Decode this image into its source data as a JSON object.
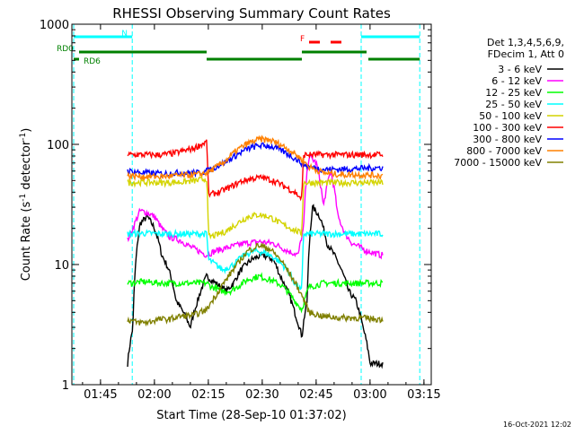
{
  "chart_data": {
    "type": "line",
    "title": "RHESSI Observing Summary Count Rates",
    "xlabel": "Start Time (28-Sep-10 01:37:02)",
    "ylabel": "Count Rate (s",
    "ylabel_sup": "-1",
    "ylabel_mid": " detector",
    "ylabel_end": ")",
    "x_unit": "minutes after 01:37:02 UT",
    "xlim": [
      0,
      100
    ],
    "ylim": [
      1,
      1000
    ],
    "y_scale": "log",
    "grid": false,
    "x_tick_labels": [
      {
        "t": 7.97,
        "label": "01:45"
      },
      {
        "t": 22.97,
        "label": "02:00"
      },
      {
        "t": 37.97,
        "label": "02:15"
      },
      {
        "t": 52.97,
        "label": "02:30"
      },
      {
        "t": 67.97,
        "label": "02:45"
      },
      {
        "t": 82.97,
        "label": "03:00"
      },
      {
        "t": 97.97,
        "label": "03:15"
      }
    ],
    "y_tick_labels": [
      {
        "v": 1,
        "label": "1"
      },
      {
        "v": 10,
        "label": "10"
      },
      {
        "v": 100,
        "label": "100"
      },
      {
        "v": 1000,
        "label": "1000"
      }
    ],
    "legend_title": [
      "Det 1,3,4,5,6,9,",
      "FDecim 1, Att 0"
    ],
    "legend_placement": "right",
    "data_window": [
      15.5,
      86.5
    ],
    "night_markers": [
      0.5,
      16.8,
      80.5,
      96.8
    ],
    "series": [
      {
        "name": "3 - 6 keV",
        "color": "#000000",
        "points": [
          [
            15.5,
            1.5
          ],
          [
            17,
            3
          ],
          [
            19,
            22
          ],
          [
            21,
            25
          ],
          [
            23,
            20
          ],
          [
            25,
            12
          ],
          [
            27,
            9
          ],
          [
            29,
            5
          ],
          [
            31,
            4
          ],
          [
            33,
            3
          ],
          [
            35,
            5
          ],
          [
            37.5,
            8
          ],
          [
            40,
            7
          ],
          [
            43,
            6
          ],
          [
            45,
            7
          ],
          [
            47,
            9
          ],
          [
            50,
            11
          ],
          [
            53,
            12
          ],
          [
            56,
            11
          ],
          [
            58,
            8
          ],
          [
            60,
            6
          ],
          [
            62,
            4
          ],
          [
            64,
            2.5
          ],
          [
            65.5,
            5
          ],
          [
            67,
            30
          ],
          [
            69,
            25
          ],
          [
            71,
            15
          ],
          [
            73,
            12
          ],
          [
            75,
            9
          ],
          [
            77,
            6
          ],
          [
            79,
            5
          ],
          [
            81,
            3
          ],
          [
            83,
            1.5
          ],
          [
            86,
            1.5
          ]
        ]
      },
      {
        "name": "6 - 12 keV",
        "color": "#ff00ff",
        "points": [
          [
            15.5,
            16
          ],
          [
            17,
            20
          ],
          [
            19,
            28
          ],
          [
            21,
            27
          ],
          [
            23,
            25
          ],
          [
            25,
            20
          ],
          [
            27,
            17
          ],
          [
            30,
            16
          ],
          [
            33,
            14
          ],
          [
            37.5,
            12
          ],
          [
            40,
            13
          ],
          [
            44,
            14
          ],
          [
            48,
            15
          ],
          [
            52,
            15.5
          ],
          [
            56,
            15
          ],
          [
            60,
            13
          ],
          [
            63,
            12
          ],
          [
            64.5,
            20
          ],
          [
            66,
            80
          ],
          [
            68,
            70
          ],
          [
            70,
            30
          ],
          [
            72,
            60
          ],
          [
            74,
            25
          ],
          [
            76,
            18
          ],
          [
            78,
            15
          ],
          [
            80,
            14
          ],
          [
            82,
            13
          ],
          [
            86,
            12
          ]
        ]
      },
      {
        "name": "12 - 25 keV",
        "color": "#00ff00",
        "points": [
          [
            15.5,
            7
          ],
          [
            20,
            7.2
          ],
          [
            25,
            7
          ],
          [
            30,
            7
          ],
          [
            35,
            7
          ],
          [
            37.5,
            7
          ],
          [
            39,
            6.5
          ],
          [
            42,
            6
          ],
          [
            44,
            6
          ],
          [
            46,
            6.5
          ],
          [
            49,
            7.5
          ],
          [
            52,
            8
          ],
          [
            55,
            7.5
          ],
          [
            58,
            6.8
          ],
          [
            60,
            6
          ],
          [
            62,
            5
          ],
          [
            64,
            4.2
          ],
          [
            66,
            6.5
          ],
          [
            70,
            7
          ],
          [
            75,
            7
          ],
          [
            80,
            7
          ],
          [
            86,
            7
          ]
        ]
      },
      {
        "name": "25 - 50 keV",
        "color": "#00ffff",
        "points": [
          [
            15.5,
            18
          ],
          [
            20,
            18.2
          ],
          [
            25,
            18
          ],
          [
            30,
            18
          ],
          [
            35,
            18
          ],
          [
            37.5,
            18
          ],
          [
            38,
            11
          ],
          [
            40,
            10
          ],
          [
            42,
            9
          ],
          [
            45,
            10
          ],
          [
            48,
            12
          ],
          [
            51,
            13
          ],
          [
            54,
            12.5
          ],
          [
            57,
            11
          ],
          [
            60,
            9
          ],
          [
            62,
            7
          ],
          [
            64,
            6
          ],
          [
            64.5,
            18
          ],
          [
            70,
            18
          ],
          [
            75,
            18
          ],
          [
            80,
            18
          ],
          [
            86,
            18
          ]
        ]
      },
      {
        "name": "50 - 100 keV",
        "color": "#d4d400",
        "points": [
          [
            15.5,
            48
          ],
          [
            20,
            48.5
          ],
          [
            25,
            48
          ],
          [
            30,
            48.5
          ],
          [
            35,
            50
          ],
          [
            37.5,
            52
          ],
          [
            38,
            17
          ],
          [
            40,
            17.5
          ],
          [
            43,
            19
          ],
          [
            46,
            22
          ],
          [
            49,
            25
          ],
          [
            52,
            26
          ],
          [
            55,
            25
          ],
          [
            58,
            22
          ],
          [
            61,
            20
          ],
          [
            64,
            18
          ],
          [
            64.5,
            48
          ],
          [
            70,
            48
          ],
          [
            75,
            48
          ],
          [
            80,
            48
          ],
          [
            86,
            48
          ]
        ]
      },
      {
        "name": "100 - 300 keV",
        "color": "#ff0000",
        "points": [
          [
            15.5,
            82
          ],
          [
            20,
            82
          ],
          [
            25,
            82
          ],
          [
            28,
            84
          ],
          [
            31,
            88
          ],
          [
            34,
            93
          ],
          [
            37.5,
            105
          ],
          [
            38,
            38
          ],
          [
            41,
            40
          ],
          [
            44,
            44
          ],
          [
            47,
            49
          ],
          [
            50,
            52
          ],
          [
            53,
            53
          ],
          [
            56,
            50
          ],
          [
            59,
            45
          ],
          [
            62,
            40
          ],
          [
            64,
            35
          ],
          [
            64.5,
            82
          ],
          [
            70,
            82
          ],
          [
            75,
            82
          ],
          [
            80,
            82
          ],
          [
            86,
            82
          ]
        ]
      },
      {
        "name": "300 - 800 keV",
        "color": "#0000ff",
        "points": [
          [
            15.5,
            60
          ],
          [
            20,
            58
          ],
          [
            25,
            57
          ],
          [
            30,
            58
          ],
          [
            35,
            58
          ],
          [
            37.5,
            60
          ],
          [
            40,
            65
          ],
          [
            43,
            72
          ],
          [
            46,
            82
          ],
          [
            49,
            92
          ],
          [
            52,
            98
          ],
          [
            55,
            97
          ],
          [
            58,
            90
          ],
          [
            61,
            80
          ],
          [
            64,
            70
          ],
          [
            66,
            65
          ],
          [
            70,
            62
          ],
          [
            75,
            62
          ],
          [
            80,
            63
          ],
          [
            86,
            64
          ]
        ]
      },
      {
        "name": "800 - 7000 keV",
        "color": "#ff8000",
        "points": [
          [
            15.5,
            55
          ],
          [
            20,
            54
          ],
          [
            25,
            54
          ],
          [
            30,
            55
          ],
          [
            35,
            56
          ],
          [
            37.5,
            58
          ],
          [
            40,
            64
          ],
          [
            43,
            74
          ],
          [
            46,
            90
          ],
          [
            49,
            102
          ],
          [
            52,
            110
          ],
          [
            55,
            109
          ],
          [
            58,
            100
          ],
          [
            61,
            88
          ],
          [
            64,
            75
          ],
          [
            66,
            65
          ],
          [
            70,
            58
          ],
          [
            75,
            56
          ],
          [
            80,
            56
          ],
          [
            86,
            55
          ]
        ]
      },
      {
        "name": "7000 - 15000 keV",
        "color": "#808000",
        "points": [
          [
            15.5,
            3.5
          ],
          [
            18,
            3.3
          ],
          [
            21,
            3.3
          ],
          [
            24,
            3.5
          ],
          [
            27,
            3.5
          ],
          [
            30,
            3.7
          ],
          [
            34,
            3.8
          ],
          [
            37.5,
            4.2
          ],
          [
            40,
            5.5
          ],
          [
            43,
            7.5
          ],
          [
            46,
            10
          ],
          [
            49,
            13
          ],
          [
            52,
            14.5
          ],
          [
            55,
            13.5
          ],
          [
            58,
            11
          ],
          [
            61,
            8
          ],
          [
            64,
            5.5
          ],
          [
            66,
            4
          ],
          [
            70,
            3.7
          ],
          [
            75,
            3.6
          ],
          [
            80,
            3.6
          ],
          [
            86,
            3.5
          ]
        ]
      }
    ],
    "attenuator_bars": [
      {
        "label": "N",
        "color": "#00ffff",
        "segments": [
          [
            0.5,
            16.8
          ],
          [
            80.5,
            96.8
          ]
        ]
      },
      {
        "label": "RD0",
        "color": "#008000",
        "segments": [
          [
            2,
            37.5
          ],
          [
            64,
            82
          ]
        ]
      },
      {
        "label": "RD6",
        "color": "#008000",
        "segments": [
          [
            0.5,
            2
          ],
          [
            37.5,
            64
          ],
          [
            82.5,
            96.8
          ]
        ]
      },
      {
        "label": "F",
        "color": "#ff0000",
        "segments": [
          [
            66,
            69
          ],
          [
            72,
            75
          ]
        ]
      }
    ]
  },
  "footer": {
    "date_stamp": "16-Oct-2021 12:02"
  }
}
